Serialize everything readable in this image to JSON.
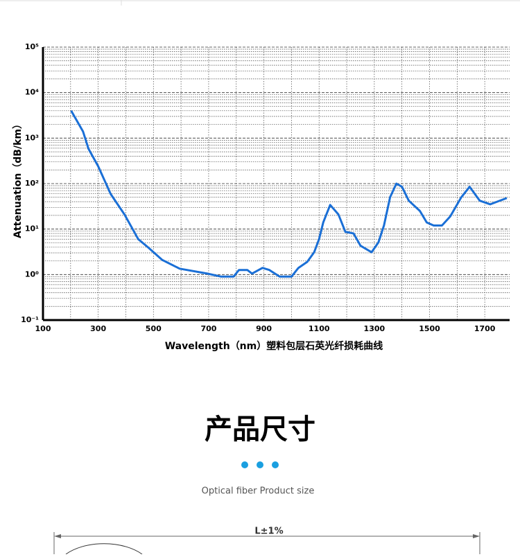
{
  "chart_data": {
    "type": "line",
    "xlabel": "Wavelength（nm）塑料包层石英光纤损耗曲线",
    "ylabel": "Attenuation（dB/km）",
    "x": [
      202,
      245,
      265,
      300,
      345,
      395,
      445,
      482,
      532,
      595,
      695,
      745,
      790,
      810,
      840,
      857,
      895,
      920,
      957,
      1000,
      1025,
      1057,
      1082,
      1100,
      1115,
      1140,
      1170,
      1195,
      1225,
      1250,
      1290,
      1315,
      1335,
      1357,
      1380,
      1400,
      1425,
      1465,
      1490,
      1515,
      1545,
      1575,
      1615,
      1645,
      1682,
      1720,
      1780
    ],
    "values": [
      4000,
      1400,
      580,
      240,
      59,
      21,
      6,
      3.9,
      2.1,
      1.35,
      1.05,
      0.9,
      0.9,
      1.26,
      1.26,
      1.05,
      1.4,
      1.26,
      0.9,
      0.9,
      1.4,
      1.9,
      3.1,
      6,
      14,
      34,
      21,
      8.7,
      8,
      4.3,
      3.1,
      5.1,
      12,
      50,
      100,
      85,
      42,
      25,
      14,
      12,
      12,
      19,
      50,
      85,
      42,
      35,
      48
    ],
    "color": "#1a6fd6",
    "xlim": [
      100,
      1790
    ],
    "xticks": [
      100,
      300,
      500,
      700,
      900,
      1100,
      1300,
      1500,
      1700
    ],
    "ylim": [
      0.1,
      100000
    ],
    "yticks": [
      {
        "value": 0.1,
        "label": "10⁻¹"
      },
      {
        "value": 1,
        "label": "10⁰"
      },
      {
        "value": 10,
        "label": "10¹"
      },
      {
        "value": 100,
        "label": "10²"
      },
      {
        "value": 1000,
        "label": "10³"
      },
      {
        "value": 10000,
        "label": "10⁴"
      },
      {
        "value": 100000,
        "label": "10⁵"
      }
    ],
    "log_y": true,
    "grid": true
  },
  "section": {
    "title": "产品尺寸",
    "subtitle": "Optical fiber Product size",
    "dimension": "L±1%"
  }
}
